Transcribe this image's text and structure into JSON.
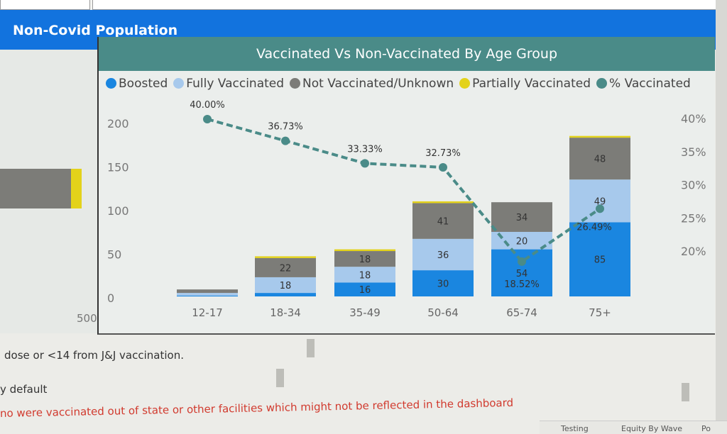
{
  "header": {
    "title": "Non-Covid Population"
  },
  "left_panel": {
    "axis_label": "500"
  },
  "chart_data": {
    "type": "bar",
    "title": "Vaccinated Vs Non-Vaccinated By Age Group",
    "stacked": true,
    "categories": [
      "12-17",
      "18-34",
      "35-49",
      "50-64",
      "65-74",
      "75+"
    ],
    "series": [
      {
        "name": "Boosted",
        "color": "#1a86e0",
        "values": [
          1,
          4,
          16,
          30,
          54,
          85
        ],
        "labels": [
          "",
          "",
          "16",
          "30",
          "54",
          "85"
        ]
      },
      {
        "name": "Fully Vaccinated",
        "color": "#a7c9ec",
        "values": [
          3,
          18,
          18,
          36,
          20,
          49
        ],
        "labels": [
          "",
          "18",
          "18",
          "36",
          "20",
          "49"
        ]
      },
      {
        "name": "Not Vaccinated/Unknown",
        "color": "#7c7c78",
        "values": [
          4,
          22,
          18,
          41,
          34,
          48
        ],
        "labels": [
          "",
          "22",
          "18",
          "41",
          "34",
          "48"
        ]
      },
      {
        "name": "Partially Vaccinated",
        "color": "#e3d21a",
        "values": [
          0,
          2,
          2,
          2,
          0,
          2
        ],
        "labels": [
          "",
          "",
          "",
          "",
          "",
          ""
        ]
      }
    ],
    "line_series": {
      "name": "% Vaccinated",
      "color": "#4a8b88",
      "values": [
        40.0,
        36.73,
        33.33,
        32.73,
        18.52,
        26.49
      ],
      "labels": [
        "40.00%",
        "36.73%",
        "33.33%",
        "32.73%",
        "18.52%",
        "26.49%"
      ],
      "axis": "right",
      "style": "dashed"
    },
    "y_left": {
      "range": [
        0,
        200
      ],
      "ticks": [
        "0",
        "50",
        "100",
        "150",
        "200"
      ]
    },
    "y_right": {
      "range": [
        18,
        40
      ],
      "ticks": [
        "20%",
        "25%",
        "30%",
        "35%",
        "40%"
      ]
    },
    "legend": "top",
    "grid": false
  },
  "notes": {
    "line1": "dose or <14 from J&J vaccination.",
    "line2": "y default",
    "line3": "no were vaccinated out of state or other facilities which might not be reflected in the dashboard"
  },
  "bottom_tabs": [
    "Testing",
    "Equity By Wave",
    "Po"
  ]
}
